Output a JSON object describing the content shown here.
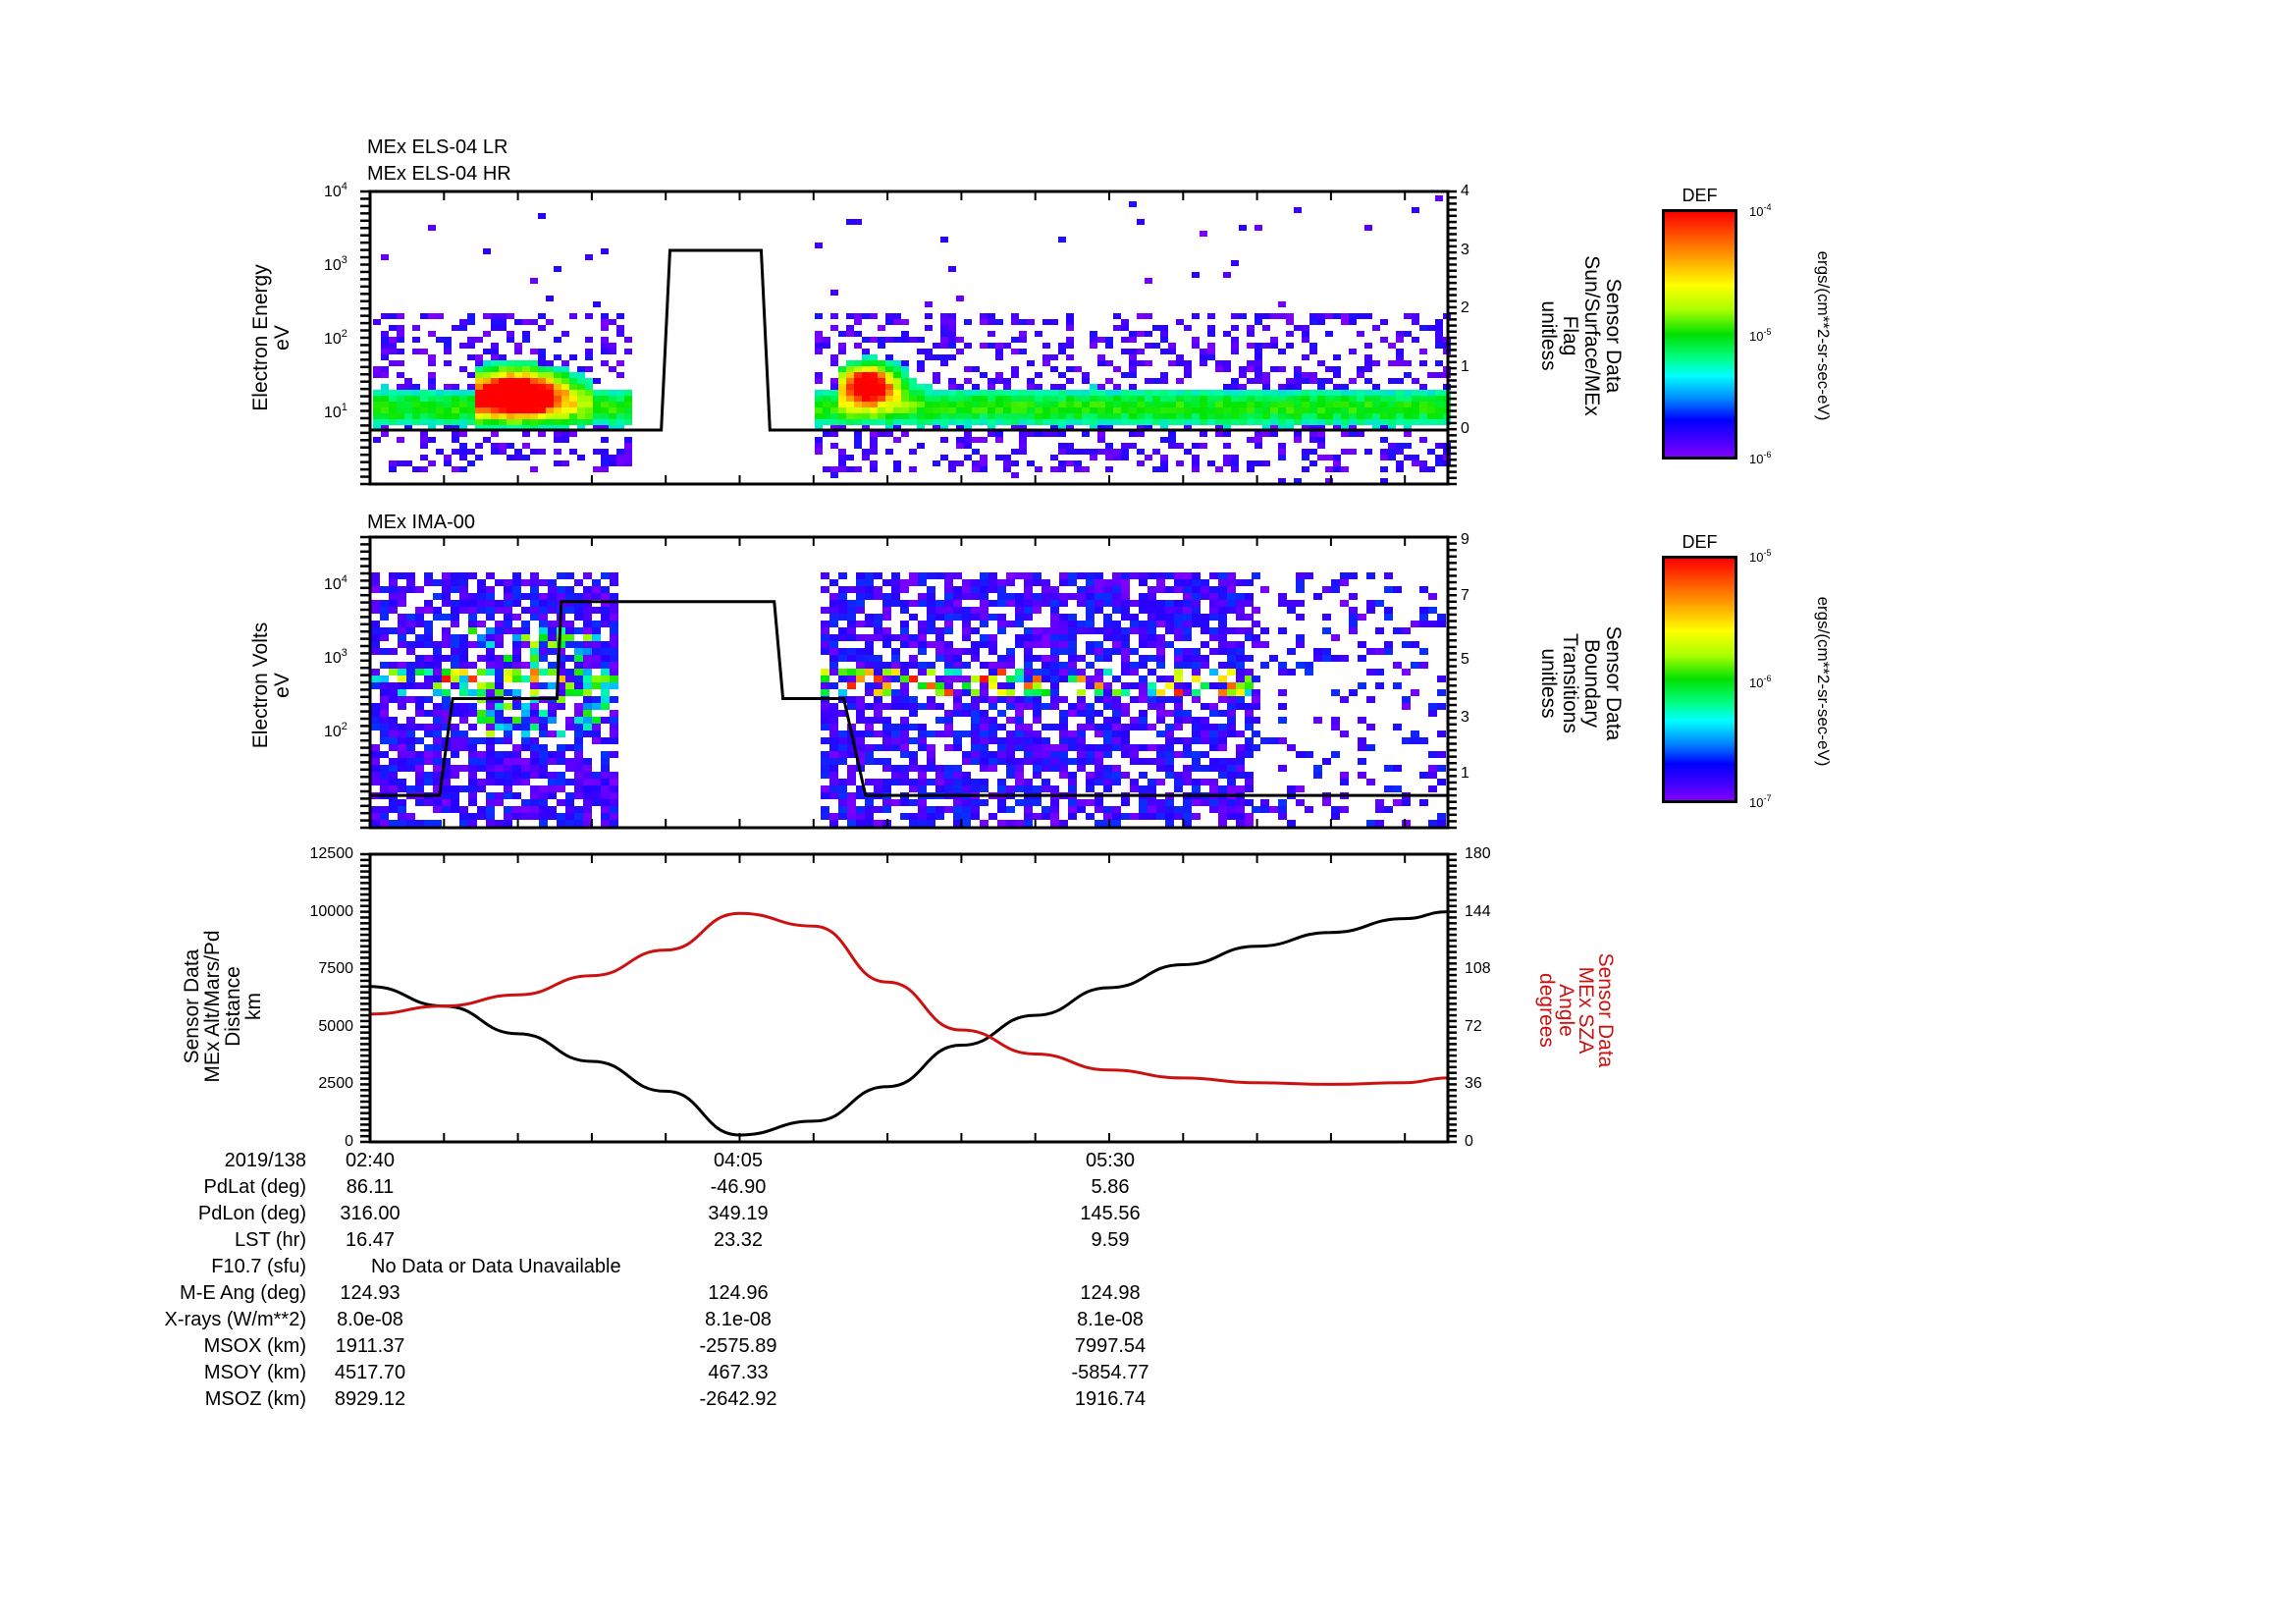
{
  "panels": {
    "els": {
      "titles": [
        "MEx ELS-04 LR",
        "MEx ELS-04 HR"
      ],
      "ylabel": [
        "Electron Energy",
        "eV"
      ],
      "yticks": [
        {
          "base": "10",
          "exp": "4"
        },
        {
          "base": "10",
          "exp": "3"
        },
        {
          "base": "10",
          "exp": "2"
        },
        {
          "base": "10",
          "exp": "1"
        }
      ],
      "right_ticks": [
        "4",
        "3",
        "2",
        "1",
        "0"
      ],
      "right_label": [
        "Sensor Data",
        "Sun/Surface/MEx",
        "Flag",
        "unitless"
      ],
      "colorbar": {
        "title": "DEF",
        "top": {
          "base": "10",
          "exp": "-4"
        },
        "mid": {
          "base": "10",
          "exp": "-5"
        },
        "bottom": {
          "base": "10",
          "exp": "-6"
        },
        "unit": "ergs/(cm**2-sr-sec-eV)"
      }
    },
    "ima": {
      "title": "MEx IMA-00",
      "ylabel": [
        "Electron Volts",
        "eV"
      ],
      "yticks": [
        {
          "base": "10",
          "exp": "4"
        },
        {
          "base": "10",
          "exp": "3"
        },
        {
          "base": "10",
          "exp": "2"
        }
      ],
      "right_ticks": [
        "9",
        "7",
        "5",
        "3",
        "1"
      ],
      "right_label": [
        "Sensor Data",
        "Boundary",
        "Transitions",
        "unitless"
      ],
      "colorbar": {
        "title": "DEF",
        "top": {
          "base": "10",
          "exp": "-5"
        },
        "mid": {
          "base": "10",
          "exp": "-6"
        },
        "bottom": {
          "base": "10",
          "exp": "-7"
        },
        "unit": "ergs/(cm**2-sr-sec-eV)"
      }
    },
    "orbit": {
      "ylabel": [
        "Sensor Data",
        "MEx Alt/Mars/Pd",
        "Distance",
        "km"
      ],
      "left_ticks": [
        "12500",
        "10000",
        "7500",
        "5000",
        "2500",
        "0"
      ],
      "right_ticks": [
        "180",
        "144",
        "108",
        "72",
        "36",
        "0"
      ],
      "right_label": [
        "Sensor Data",
        "MEx SZA",
        "Angle",
        "degrees"
      ]
    }
  },
  "table": {
    "date": "2019/138",
    "times": [
      "02:40",
      "04:05",
      "05:30"
    ],
    "rows": [
      {
        "label": "PdLat (deg)",
        "values": [
          "86.11",
          "-46.90",
          "5.86"
        ]
      },
      {
        "label": "PdLon (deg)",
        "values": [
          "316.00",
          "349.19",
          "145.56"
        ]
      },
      {
        "label": "LST (hr)",
        "values": [
          "16.47",
          "23.32",
          "9.59"
        ]
      },
      {
        "label": "F10.7 (sfu)",
        "note": "No Data or Data Unavailable"
      },
      {
        "label": "M-E Ang (deg)",
        "values": [
          "124.93",
          "124.96",
          "124.98"
        ]
      },
      {
        "label": "X-rays (W/m**2)",
        "values": [
          "8.0e-08",
          "8.1e-08",
          "8.1e-08"
        ]
      },
      {
        "label": "MSOX (km)",
        "values": [
          "1911.37",
          "-2575.89",
          "7997.54"
        ]
      },
      {
        "label": "MSOY (km)",
        "values": [
          "4517.70",
          "467.33",
          "-5854.77"
        ]
      },
      {
        "label": "MSOZ (km)",
        "values": [
          "8929.12",
          "-2642.92",
          "1916.74"
        ]
      }
    ]
  },
  "colors": {
    "altitude": "#000000",
    "sza": "#cc1111",
    "axis": "#000000"
  },
  "chart_data": [
    {
      "type": "heatmap",
      "title": "MEx ELS-04 LR / MEx ELS-04 HR",
      "ylabel": "Electron Energy (eV)",
      "yscale": "log",
      "ylim": [
        1,
        10000
      ],
      "xlabel": "UT 2019/138",
      "xlim": [
        "02:40",
        "06:48"
      ],
      "colorbar": {
        "label": "DEF ergs/(cm**2-sr-sec-eV)",
        "range": [
          1e-06,
          0.0001
        ]
      },
      "data_gaps": [
        [
          "03:52",
          "04:30"
        ]
      ],
      "features": "Intense 10-100 eV electron flux peaks near 03:05 and 04:36; steady ~10-30 eV band after 04:50",
      "overlay": {
        "name": "Sun/Surface/MEx Flag",
        "yaxis_right": [
          -0.9,
          4
        ],
        "x": [
          "02:40",
          "03:47",
          "03:49",
          "04:10",
          "04:12",
          "06:48"
        ],
        "y": [
          0,
          0,
          3,
          3,
          0,
          0
        ]
      }
    },
    {
      "type": "heatmap",
      "title": "MEx IMA-00",
      "ylabel": "Electron Volts (eV)",
      "yscale": "log",
      "ylim": [
        5,
        40000
      ],
      "xlabel": "UT 2019/138",
      "xlim": [
        "02:40",
        "06:48"
      ],
      "colorbar": {
        "label": "DEF ergs/(cm**2-sr-sec-eV)",
        "range": [
          1e-07,
          1e-05
        ]
      },
      "data_gaps": [
        [
          "03:54",
          "04:32"
        ]
      ],
      "features": "Ion band near 500-700 eV from 02:40-03:50 and 04:32-06:00; sparse coverage after 06:05",
      "overlay": {
        "name": "Boundary Transitions",
        "yaxis_right": [
          0,
          9
        ],
        "x": [
          "02:40",
          "02:56",
          "02:59",
          "03:23",
          "03:24",
          "04:13",
          "04:15",
          "04:29",
          "04:34",
          "06:48"
        ],
        "y": [
          1,
          1,
          4,
          4,
          7,
          7,
          4,
          4,
          1,
          1
        ]
      }
    },
    {
      "type": "line",
      "xlabel": "UT 2019/138",
      "x": [
        "02:40",
        "02:57",
        "03:14",
        "03:31",
        "03:48",
        "04:05",
        "04:22",
        "04:39",
        "04:56",
        "05:13",
        "05:30",
        "05:47",
        "06:04",
        "06:21",
        "06:38",
        "06:48"
      ],
      "series": [
        {
          "name": "MEx Alt/Mars/Pd Distance (km)",
          "axis": "left",
          "color": "#000000",
          "values": [
            6750,
            5900,
            4700,
            3500,
            2200,
            300,
            900,
            2400,
            4200,
            5500,
            6700,
            7700,
            8500,
            9100,
            9700,
            10000
          ]
        },
        {
          "name": "MEx SZA Angle (degrees)",
          "axis": "right",
          "color": "#cc1111",
          "values": [
            80,
            85,
            92,
            104,
            120,
            143,
            135,
            100,
            70,
            55,
            45,
            40,
            37,
            36,
            37,
            40
          ]
        }
      ],
      "ylim_left": [
        0,
        12500
      ],
      "ylim_right": [
        0,
        180
      ],
      "left_ticks": [
        0,
        2500,
        5000,
        7500,
        10000,
        12500
      ],
      "right_ticks": [
        0,
        36,
        72,
        108,
        144,
        180
      ]
    }
  ]
}
